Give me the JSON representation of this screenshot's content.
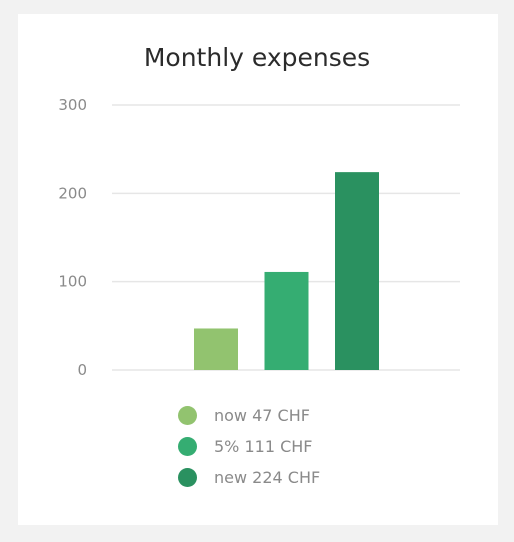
{
  "chart_data": {
    "type": "bar",
    "title": "Monthly expenses",
    "xlabel": "",
    "ylabel": "",
    "ylim": [
      0,
      300
    ],
    "yticks": [
      0,
      100,
      200,
      300
    ],
    "grid": true,
    "legend_position": "bottom",
    "series": [
      {
        "name": "now 47 CHF",
        "value": 47,
        "color": "#92c36f"
      },
      {
        "name": "5% 111 CHF",
        "value": 111,
        "color": "#35ad72"
      },
      {
        "name": "new 224 CHF",
        "value": 224,
        "color": "#2a9160"
      }
    ]
  },
  "colors": {
    "background": "#f2f2f2",
    "card": "#ffffff",
    "grid": "#e6e6e6",
    "text_muted": "#8a8a8a",
    "title": "#2b2b2b"
  }
}
